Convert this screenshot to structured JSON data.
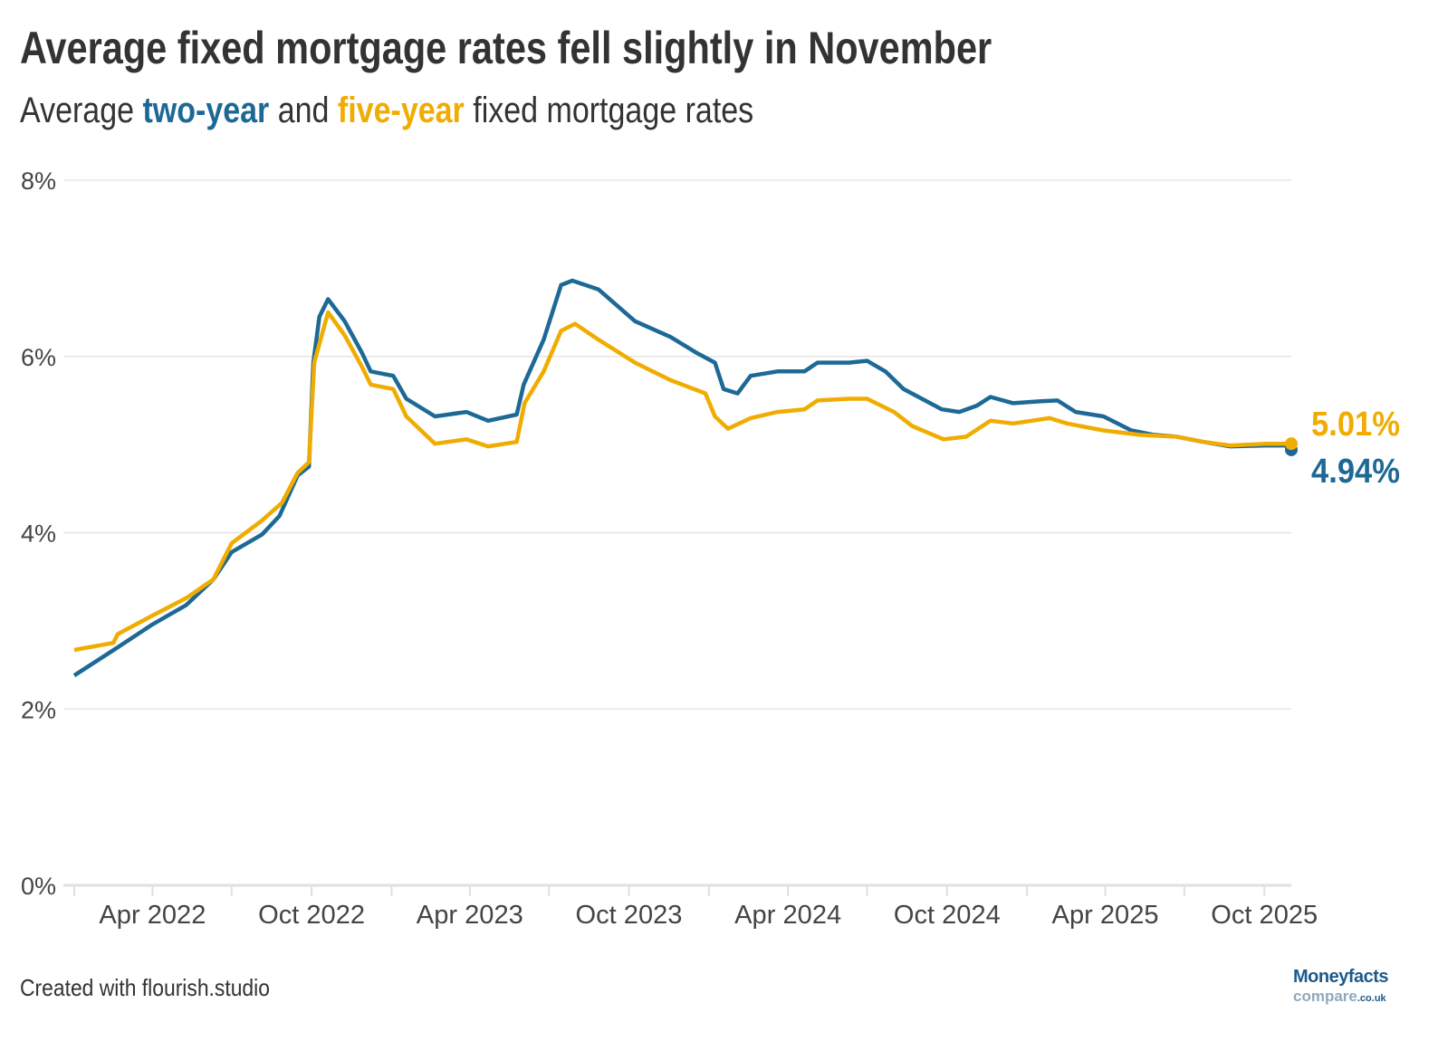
{
  "header": {
    "title": "Average fixed mortgage rates fell slightly in November",
    "subtitle_pre": "Average ",
    "subtitle_two": "two-year",
    "subtitle_mid": " and ",
    "subtitle_five": "five-year",
    "subtitle_post": " fixed mortgage rates"
  },
  "footer": {
    "credit": "Created with flourish.studio",
    "logo_main": "Moneyfacts",
    "logo_sub": "compare",
    "logo_tld": ".co.uk"
  },
  "colors": {
    "two_year": "#1d6996",
    "five_year": "#f0ac00",
    "grid": "#e6e6e6"
  },
  "chart_data": {
    "type": "line",
    "title": "Average fixed mortgage rates fell slightly in November",
    "xlabel": "",
    "ylabel": "",
    "xlim": [
      "2022-01-01",
      "2025-11-01"
    ],
    "ylim": [
      0,
      8
    ],
    "y_ticks": [
      0,
      2,
      4,
      6,
      8
    ],
    "y_tick_labels": [
      "0%",
      "2%",
      "4%",
      "6%",
      "8%"
    ],
    "x_ticks": [
      "2022-04-01",
      "2022-10-01",
      "2023-04-01",
      "2023-10-01",
      "2024-04-01",
      "2024-10-01",
      "2025-04-01",
      "2025-10-01"
    ],
    "x_tick_labels": [
      "Apr 2022",
      "Oct 2022",
      "Apr 2023",
      "Oct 2023",
      "Apr 2024",
      "Oct 2024",
      "Apr 2025",
      "Oct 2025"
    ],
    "grid": true,
    "legend": "none",
    "series": [
      {
        "name": "two-year",
        "end_label": "4.94%",
        "points": [
          [
            "2022-01-01",
            2.38
          ],
          [
            "2022-02-20",
            2.7
          ],
          [
            "2022-04-01",
            2.96
          ],
          [
            "2022-05-10",
            3.18
          ],
          [
            "2022-06-10",
            3.47
          ],
          [
            "2022-07-01",
            3.78
          ],
          [
            "2022-08-05",
            3.98
          ],
          [
            "2022-08-25",
            4.19
          ],
          [
            "2022-09-15",
            4.65
          ],
          [
            "2022-09-28",
            4.75
          ],
          [
            "2022-10-03",
            5.93
          ],
          [
            "2022-10-10",
            6.45
          ],
          [
            "2022-10-20",
            6.65
          ],
          [
            "2022-11-08",
            6.4
          ],
          [
            "2022-11-28",
            6.04
          ],
          [
            "2022-12-08",
            5.83
          ],
          [
            "2023-01-03",
            5.78
          ],
          [
            "2023-01-18",
            5.52
          ],
          [
            "2023-02-20",
            5.32
          ],
          [
            "2023-03-28",
            5.37
          ],
          [
            "2023-04-22",
            5.27
          ],
          [
            "2023-05-25",
            5.34
          ],
          [
            "2023-06-02",
            5.68
          ],
          [
            "2023-06-25",
            6.19
          ],
          [
            "2023-07-15",
            6.81
          ],
          [
            "2023-07-28",
            6.86
          ],
          [
            "2023-08-27",
            6.76
          ],
          [
            "2023-10-08",
            6.4
          ],
          [
            "2023-11-18",
            6.22
          ],
          [
            "2023-12-18",
            6.04
          ],
          [
            "2024-01-08",
            5.93
          ],
          [
            "2024-01-18",
            5.63
          ],
          [
            "2024-02-03",
            5.58
          ],
          [
            "2024-02-18",
            5.78
          ],
          [
            "2024-03-20",
            5.83
          ],
          [
            "2024-04-20",
            5.83
          ],
          [
            "2024-05-05",
            5.93
          ],
          [
            "2024-06-10",
            5.93
          ],
          [
            "2024-07-01",
            5.95
          ],
          [
            "2024-07-22",
            5.83
          ],
          [
            "2024-08-12",
            5.63
          ],
          [
            "2024-09-25",
            5.4
          ],
          [
            "2024-10-15",
            5.37
          ],
          [
            "2024-11-04",
            5.44
          ],
          [
            "2024-11-20",
            5.54
          ],
          [
            "2024-12-16",
            5.47
          ],
          [
            "2025-01-15",
            5.49
          ],
          [
            "2025-02-05",
            5.5
          ],
          [
            "2025-02-26",
            5.37
          ],
          [
            "2025-03-30",
            5.32
          ],
          [
            "2025-05-01",
            5.16
          ],
          [
            "2025-05-27",
            5.11
          ],
          [
            "2025-06-22",
            5.09
          ],
          [
            "2025-07-23",
            5.03
          ],
          [
            "2025-08-23",
            4.98
          ],
          [
            "2025-10-04",
            4.99
          ],
          [
            "2025-10-25",
            4.99
          ],
          [
            "2025-11-01",
            4.94
          ]
        ]
      },
      {
        "name": "five-year",
        "end_label": "5.01%",
        "points": [
          [
            "2022-01-01",
            2.67
          ],
          [
            "2022-02-15",
            2.75
          ],
          [
            "2022-02-20",
            2.85
          ],
          [
            "2022-04-01",
            3.06
          ],
          [
            "2022-05-10",
            3.26
          ],
          [
            "2022-06-10",
            3.47
          ],
          [
            "2022-07-01",
            3.88
          ],
          [
            "2022-08-05",
            4.14
          ],
          [
            "2022-08-28",
            4.34
          ],
          [
            "2022-09-15",
            4.68
          ],
          [
            "2022-09-28",
            4.8
          ],
          [
            "2022-10-04",
            5.93
          ],
          [
            "2022-10-20",
            6.5
          ],
          [
            "2022-11-08",
            6.24
          ],
          [
            "2022-11-28",
            5.88
          ],
          [
            "2022-12-08",
            5.68
          ],
          [
            "2023-01-03",
            5.63
          ],
          [
            "2023-01-18",
            5.32
          ],
          [
            "2023-02-20",
            5.01
          ],
          [
            "2023-03-28",
            5.06
          ],
          [
            "2023-04-22",
            4.98
          ],
          [
            "2023-05-25",
            5.03
          ],
          [
            "2023-06-03",
            5.47
          ],
          [
            "2023-06-25",
            5.83
          ],
          [
            "2023-07-15",
            6.29
          ],
          [
            "2023-07-31",
            6.37
          ],
          [
            "2023-08-27",
            6.19
          ],
          [
            "2023-10-08",
            5.93
          ],
          [
            "2023-11-18",
            5.73
          ],
          [
            "2023-12-28",
            5.58
          ],
          [
            "2024-01-08",
            5.32
          ],
          [
            "2024-01-23",
            5.18
          ],
          [
            "2024-02-18",
            5.3
          ],
          [
            "2024-03-20",
            5.37
          ],
          [
            "2024-04-20",
            5.4
          ],
          [
            "2024-05-05",
            5.5
          ],
          [
            "2024-06-10",
            5.52
          ],
          [
            "2024-07-01",
            5.52
          ],
          [
            "2024-08-01",
            5.37
          ],
          [
            "2024-08-22",
            5.21
          ],
          [
            "2024-09-27",
            5.06
          ],
          [
            "2024-10-23",
            5.09
          ],
          [
            "2024-11-20",
            5.27
          ],
          [
            "2024-12-16",
            5.24
          ],
          [
            "2025-01-27",
            5.3
          ],
          [
            "2025-02-16",
            5.24
          ],
          [
            "2025-03-30",
            5.16
          ],
          [
            "2025-05-11",
            5.11
          ],
          [
            "2025-06-22",
            5.09
          ],
          [
            "2025-07-23",
            5.03
          ],
          [
            "2025-08-23",
            4.99
          ],
          [
            "2025-10-04",
            5.01
          ],
          [
            "2025-11-01",
            5.01
          ]
        ]
      }
    ]
  }
}
